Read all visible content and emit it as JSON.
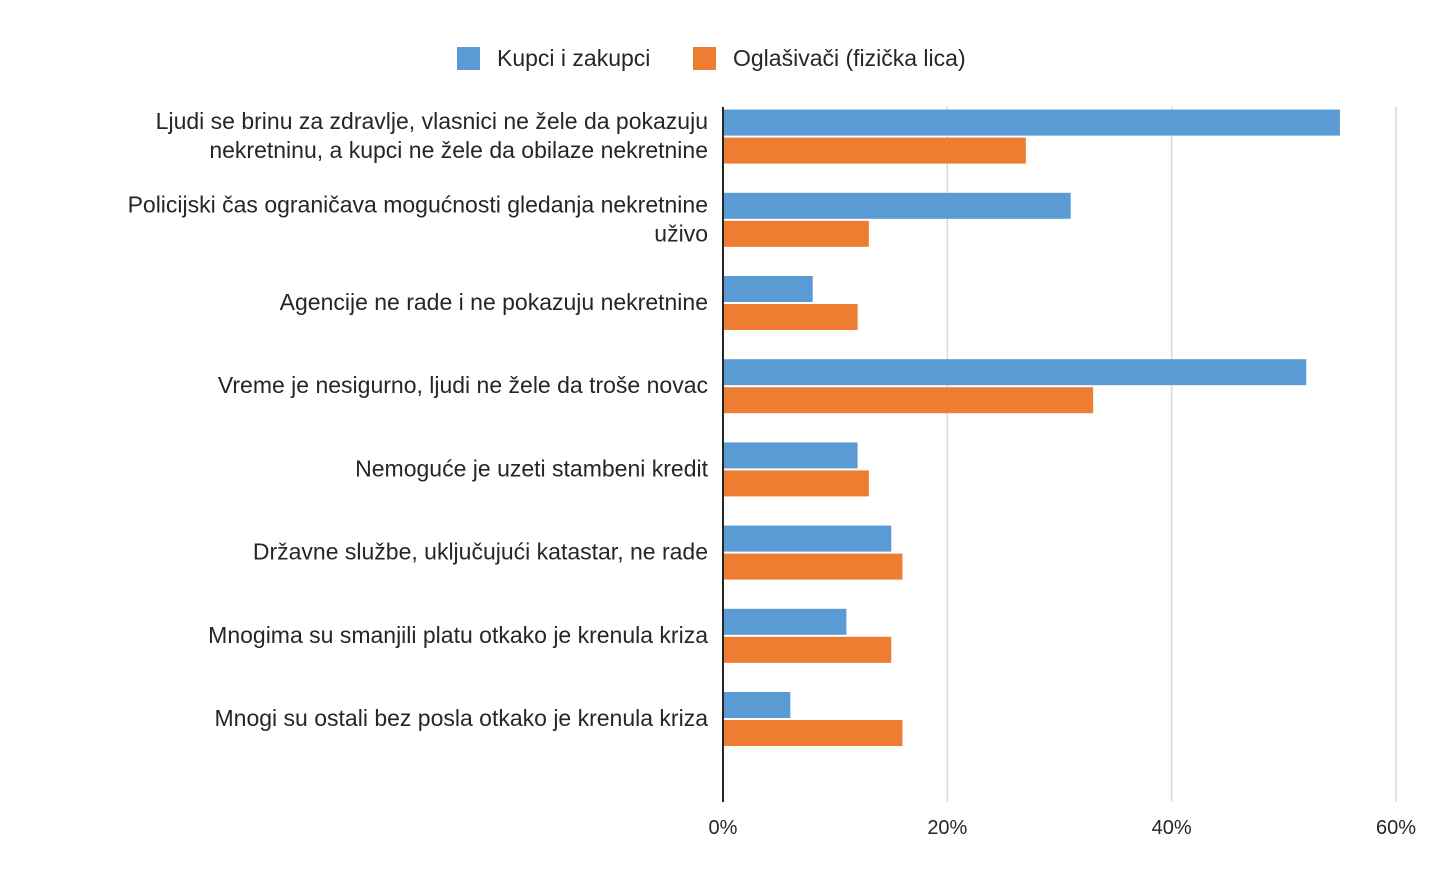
{
  "chart_data": {
    "type": "bar",
    "orientation": "horizontal",
    "categories": [
      [
        "Ljudi se brinu za zdravlje, vlasnici ne žele da pokazuju",
        "nekretninu, a kupci ne žele da obilaze nekretnine"
      ],
      [
        "Policijski čas ograničava mogućnosti gledanja nekretnine",
        "uživo"
      ],
      [
        "Agencije ne rade i ne pokazuju nekretnine"
      ],
      [
        "Vreme je nesigurno, ljudi ne žele da troše novac"
      ],
      [
        "Nemoguće je uzeti stambeni kredit"
      ],
      [
        "Državne službe, uključujući katastar, ne rade"
      ],
      [
        "Mnogima su smanjili platu otkako je krenula kriza"
      ],
      [
        "Mnogi su ostali bez posla otkako je krenula kriza"
      ]
    ],
    "series": [
      {
        "name": "Kupci i zakupci",
        "color": "#5B9BD5",
        "values": [
          55,
          31,
          8,
          52,
          12,
          15,
          11,
          6
        ]
      },
      {
        "name": "Oglašivači (fizička lica)",
        "color": "#ED7D31",
        "values": [
          27,
          13,
          12,
          33,
          13,
          16,
          15,
          16
        ]
      }
    ],
    "xlim": [
      0,
      60
    ],
    "xticks": [
      0,
      20,
      40,
      60
    ],
    "tick_suffix": "%",
    "grid": true,
    "legend_position": "top-center"
  }
}
